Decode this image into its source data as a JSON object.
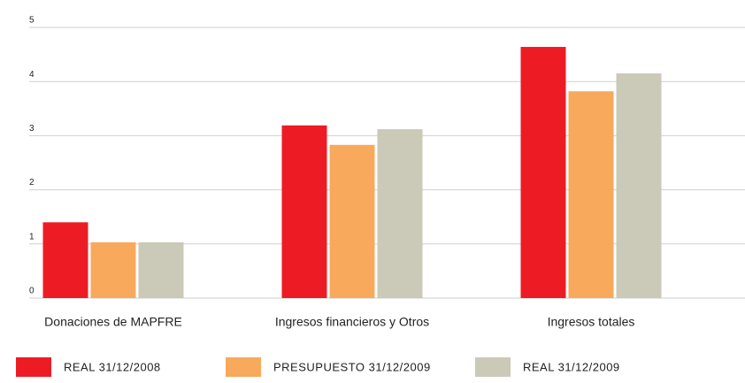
{
  "chart_data": {
    "type": "bar",
    "categories": [
      "Donaciones de MAPFRE",
      "Ingresos financieros y Otros",
      "Ingresos totales"
    ],
    "series": [
      {
        "name": "REAL 31/12/2008",
        "color": "#ed1c24",
        "values": [
          1.4,
          3.19,
          4.64
        ]
      },
      {
        "name": "PRESUPUESTO 31/12/2009",
        "color": "#f8a95c",
        "values": [
          1.03,
          2.83,
          3.82
        ]
      },
      {
        "name": "REAL 31/12/2009",
        "color": "#cbc9b7",
        "values": [
          1.03,
          3.12,
          4.15
        ]
      }
    ],
    "ylim": [
      0,
      5
    ],
    "yticks": [
      0,
      1,
      2,
      3,
      4,
      5
    ],
    "grid": true,
    "legend": "bottom"
  }
}
